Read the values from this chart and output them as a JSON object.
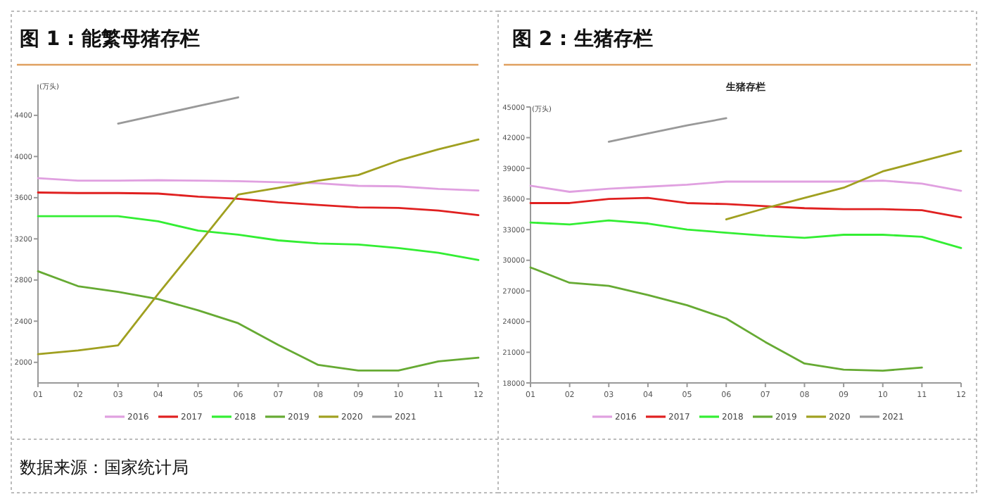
{
  "chart_data": [
    {
      "type": "line",
      "title": "图 1 : 能繁母猪存栏",
      "ylabel": "(万头)",
      "categories": [
        "01",
        "02",
        "03",
        "04",
        "05",
        "06",
        "07",
        "08",
        "09",
        "10",
        "11",
        "12"
      ],
      "ylim": [
        1800,
        4700
      ],
      "yticks": [
        2000,
        2400,
        2800,
        3200,
        3600,
        4000,
        4400
      ],
      "legend": "bottom",
      "grid": false,
      "marker": "none",
      "annotations": [
        "数据来源：国家统计局"
      ],
      "series": [
        {
          "name": "2016",
          "color": "#e0a0e0",
          "values": [
            3790,
            3765,
            3765,
            3770,
            3765,
            3760,
            3750,
            3740,
            3715,
            3710,
            3685,
            3670
          ]
        },
        {
          "name": "2017",
          "color": "#e02020",
          "values": [
            3650,
            3645,
            3645,
            3640,
            3610,
            3590,
            3555,
            3530,
            3505,
            3500,
            3475,
            3430
          ]
        },
        {
          "name": "2018",
          "color": "#33ee33",
          "values": [
            3420,
            3420,
            3420,
            3370,
            3280,
            3240,
            3185,
            3155,
            3145,
            3110,
            3065,
            2995
          ]
        },
        {
          "name": "2019",
          "color": "#66aa33",
          "values": [
            2885,
            2740,
            2685,
            2615,
            2505,
            2380,
            2170,
            1975,
            1920,
            1920,
            2010,
            2045
          ]
        },
        {
          "name": "2020",
          "color": "#a0a020",
          "values": [
            2080,
            2115,
            2165,
            2665,
            3145,
            3630,
            3695,
            3765,
            3820,
            3960,
            4070,
            4165
          ]
        },
        {
          "name": "2021",
          "color": "#999999",
          "values": [
            null,
            null,
            4320,
            4405,
            4490,
            4575,
            null,
            null,
            null,
            null,
            null,
            null
          ]
        }
      ]
    },
    {
      "type": "line",
      "title": "图 2 : 生猪存栏",
      "subtitle": "生猪存栏",
      "ylabel": "(万头)",
      "categories": [
        "01",
        "02",
        "03",
        "04",
        "05",
        "06",
        "07",
        "08",
        "09",
        "10",
        "11",
        "12"
      ],
      "ylim": [
        18000,
        45000
      ],
      "yticks": [
        18000,
        21000,
        24000,
        27000,
        30000,
        33000,
        36000,
        39000,
        42000,
        45000
      ],
      "legend": "bottom",
      "grid": false,
      "marker": "none",
      "series": [
        {
          "name": "2016",
          "color": "#e0a0e0",
          "values": [
            37300,
            36700,
            37000,
            37200,
            37400,
            37700,
            37700,
            37700,
            37700,
            37800,
            37500,
            36800
          ]
        },
        {
          "name": "2017",
          "color": "#e02020",
          "values": [
            35600,
            35600,
            36000,
            36100,
            35600,
            35500,
            35300,
            35100,
            35000,
            35000,
            34900,
            34200
          ]
        },
        {
          "name": "2018",
          "color": "#33ee33",
          "values": [
            33700,
            33500,
            33900,
            33600,
            33000,
            32700,
            32400,
            32200,
            32500,
            32500,
            32300,
            31200
          ]
        },
        {
          "name": "2019",
          "color": "#66aa33",
          "values": [
            29300,
            27800,
            27500,
            26600,
            25600,
            24300,
            22000,
            19900,
            19300,
            19200,
            19500,
            null
          ]
        },
        {
          "name": "2020",
          "color": "#a0a020",
          "values": [
            null,
            null,
            null,
            null,
            null,
            34000,
            35100,
            36100,
            37100,
            38700,
            39700,
            40700
          ]
        },
        {
          "name": "2021",
          "color": "#999999",
          "values": [
            null,
            null,
            41600,
            42400,
            43200,
            43900,
            null,
            null,
            null,
            null,
            null,
            null
          ]
        }
      ]
    }
  ]
}
